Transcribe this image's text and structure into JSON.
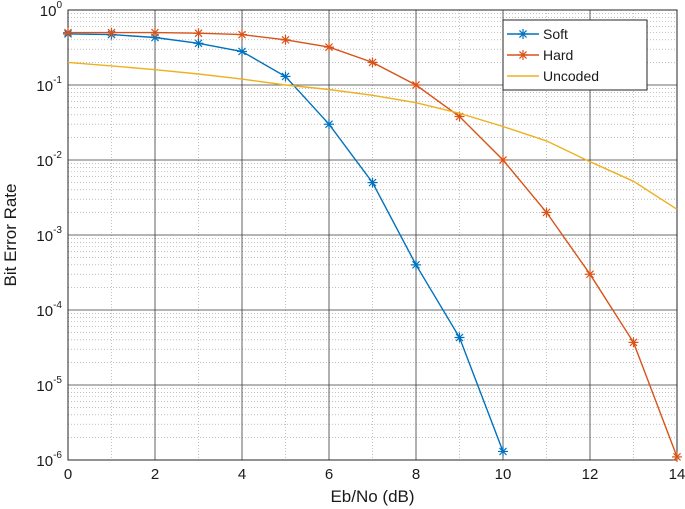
{
  "chart_data": {
    "type": "line",
    "title": "",
    "xlabel": "Eb/No (dB)",
    "ylabel": "Bit Error Rate",
    "xlim": [
      0,
      14
    ],
    "ylim": [
      1e-06,
      1
    ],
    "yscale": "log",
    "grid": true,
    "minor_grid": true,
    "legend_position": "top-right",
    "x_ticks": [
      "0",
      "2",
      "4",
      "6",
      "8",
      "10",
      "12",
      "14"
    ],
    "y_ticks": [
      {
        "base": "10",
        "exp": "0",
        "value": 1
      },
      {
        "base": "10",
        "exp": "-1",
        "value": 0.1
      },
      {
        "base": "10",
        "exp": "-2",
        "value": 0.01
      },
      {
        "base": "10",
        "exp": "-3",
        "value": 0.001
      },
      {
        "base": "10",
        "exp": "-4",
        "value": 0.0001
      },
      {
        "base": "10",
        "exp": "-5",
        "value": 1e-05
      },
      {
        "base": "10",
        "exp": "-6",
        "value": 1e-06
      }
    ],
    "series": [
      {
        "name": "Soft",
        "color": "#0072BD",
        "marker": "asterisk",
        "x": [
          0,
          1,
          2,
          3,
          4,
          5,
          6,
          7,
          8,
          9,
          10
        ],
        "y": [
          0.48,
          0.47,
          0.43,
          0.36,
          0.28,
          0.13,
          0.03,
          0.005,
          0.0004,
          4.3e-05,
          1.3e-06
        ]
      },
      {
        "name": "Hard",
        "color": "#D95319",
        "marker": "asterisk",
        "x": [
          0,
          1,
          2,
          3,
          4,
          5,
          6,
          7,
          8,
          9,
          10,
          11,
          12,
          13,
          14
        ],
        "y": [
          0.5,
          0.5,
          0.5,
          0.49,
          0.47,
          0.4,
          0.32,
          0.2,
          0.1,
          0.038,
          0.01,
          0.002,
          0.0003,
          3.7e-05,
          1.1e-06
        ]
      },
      {
        "name": "Uncoded",
        "color": "#EDB120",
        "marker": "none",
        "x": [
          0,
          1,
          2,
          3,
          4,
          5,
          6,
          7,
          8,
          9,
          10,
          11,
          12,
          13,
          14
        ],
        "y": [
          0.2,
          0.18,
          0.16,
          0.14,
          0.12,
          0.1,
          0.087,
          0.073,
          0.058,
          0.042,
          0.028,
          0.018,
          0.0095,
          0.0052,
          0.0022
        ]
      }
    ]
  }
}
